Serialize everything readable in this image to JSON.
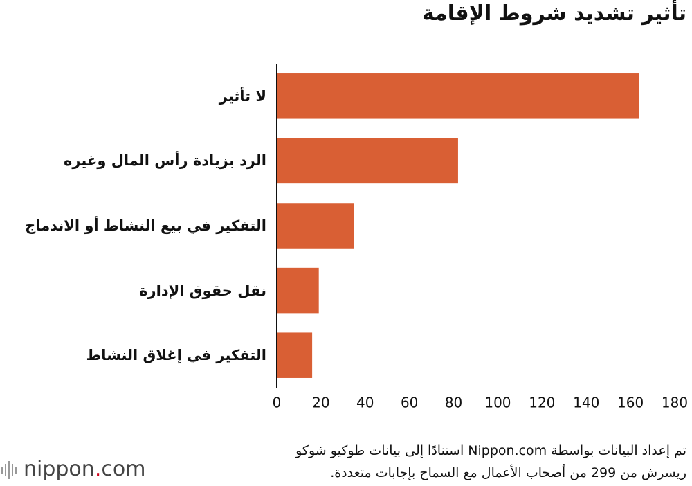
{
  "chart_data": {
    "type": "bar",
    "orientation": "horizontal",
    "title": "تأثير تشديد شروط الإقامة",
    "categories": [
      "لا تأثير",
      "الرد بزيادة رأس المال وغيره",
      "التفكير في بيع النشاط أو الاندماج",
      "نقل حقوق الإدارة",
      "التفكير في إغلاق النشاط"
    ],
    "values": [
      164,
      82,
      35,
      19,
      16
    ],
    "color": "#d95f34",
    "xlim": [
      0,
      180
    ],
    "xticks": [
      0,
      20,
      40,
      60,
      80,
      100,
      120,
      140,
      160,
      180
    ],
    "grid": false
  },
  "footer": {
    "note": [
      "تم إعداد البيانات بواسطة Nippon.com استنادًا إلى بيانات طوكيو شوكو",
      "ريسرش من 299 من أصحاب الأعمال مع السماح بإجابات متعددة."
    ],
    "logo": [
      "nippon",
      ".",
      "com"
    ]
  }
}
